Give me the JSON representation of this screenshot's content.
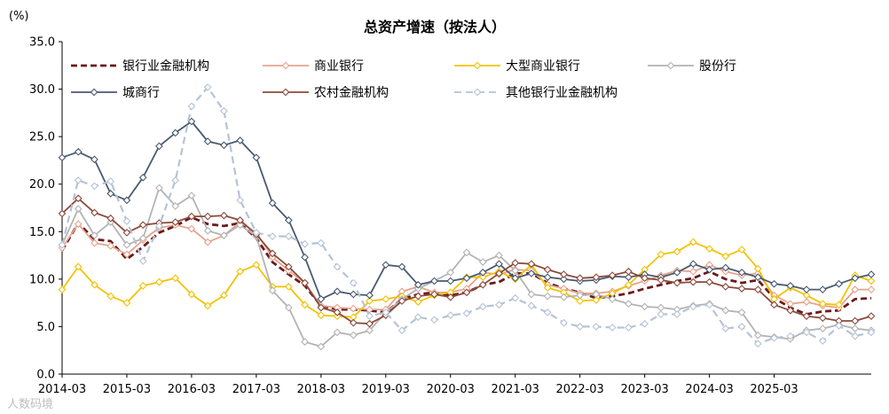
{
  "chart_data": {
    "type": "line",
    "title": "总资产增速（按法人）",
    "unit_label": "(%)",
    "ylim": [
      0,
      35
    ],
    "yticks": [
      "0.0",
      "5.0",
      "10.0",
      "15.0",
      "20.0",
      "25.0",
      "30.0",
      "35.0"
    ],
    "xticks": [
      "2014-03",
      "2015-03",
      "2016-03",
      "2017-03",
      "2018-03",
      "2019-03",
      "2020-03",
      "2021-03",
      "2022-03",
      "2023-03",
      "2024-03",
      "2025-03"
    ],
    "x_start": "2014-03",
    "x_step": "quarter",
    "watermark": "人数码境",
    "series": [
      {
        "name": "银行业金融机构",
        "color": "#6b1a1a",
        "style": "dashed",
        "marker": "none",
        "values": [
          13.0,
          15.9,
          14.2,
          14.0,
          12.1,
          13.4,
          14.9,
          15.6,
          16.5,
          15.8,
          15.6,
          15.9,
          14.3,
          11.8,
          10.5,
          9.3,
          7.2,
          6.8,
          6.8,
          6.7,
          6.5,
          7.9,
          8.4,
          8.6,
          8.3,
          8.6,
          9.4,
          9.7,
          10.6,
          10.6,
          9.6,
          9.0,
          8.6,
          8.0,
          8.2,
          8.5,
          9.0,
          9.4,
          9.8,
          10.1,
          10.8,
          10.0,
          9.6,
          9.9,
          8.0,
          7.0,
          6.3,
          6.6,
          6.7,
          7.9,
          8.0
        ]
      },
      {
        "name": "商业银行",
        "color": "#e6a38c",
        "style": "solid",
        "marker": "diamond",
        "values": [
          13.3,
          15.8,
          13.8,
          13.5,
          12.6,
          14.1,
          15.4,
          15.7,
          15.3,
          13.9,
          14.6,
          16.0,
          14.9,
          12.3,
          10.9,
          9.6,
          7.2,
          7.0,
          6.9,
          6.8,
          6.8,
          8.7,
          9.2,
          8.6,
          8.6,
          9.0,
          10.7,
          10.5,
          11.0,
          10.9,
          9.4,
          9.0,
          8.5,
          8.5,
          8.7,
          9.3,
          9.8,
          10.4,
          10.9,
          10.8,
          11.5,
          10.8,
          10.4,
          10.6,
          8.3,
          7.4,
          7.6,
          7.2,
          7.0,
          8.9,
          8.9
        ]
      },
      {
        "name": "大型商业银行",
        "color": "#f2c200",
        "style": "solid",
        "marker": "diamond",
        "values": [
          8.9,
          11.3,
          9.4,
          8.2,
          7.5,
          9.3,
          9.7,
          10.1,
          8.4,
          7.2,
          8.3,
          10.8,
          11.5,
          9.2,
          9.2,
          7.3,
          6.2,
          6.1,
          6.0,
          7.7,
          7.9,
          8.2,
          7.6,
          8.3,
          8.6,
          10.2,
          10.2,
          10.8,
          10.0,
          11.5,
          9.1,
          8.6,
          7.7,
          7.8,
          8.5,
          9.4,
          11.0,
          12.6,
          12.9,
          13.9,
          13.2,
          12.4,
          13.1,
          11.1,
          7.9,
          9.1,
          8.3,
          7.4,
          7.3,
          10.4,
          9.8
        ]
      },
      {
        "name": "股份行",
        "color": "#b3b3b3",
        "style": "solid",
        "marker": "diamond",
        "values": [
          13.6,
          17.4,
          14.6,
          16.0,
          13.6,
          14.3,
          19.6,
          17.7,
          18.8,
          15.1,
          14.6,
          15.7,
          14.5,
          8.8,
          7.0,
          3.4,
          2.9,
          4.4,
          4.1,
          4.6,
          6.5,
          7.9,
          9.0,
          9.8,
          10.7,
          12.8,
          11.8,
          12.5,
          10.9,
          8.4,
          8.2,
          8.1,
          8.3,
          8.4,
          7.9,
          7.4,
          7.1,
          7.0,
          6.8,
          7.2,
          7.4,
          6.7,
          6.5,
          4.1,
          3.9,
          3.7,
          4.6,
          4.8,
          5.2,
          4.8,
          4.6
        ]
      },
      {
        "name": "城商行",
        "color": "#4a5a70",
        "style": "solid",
        "marker": "diamond",
        "values": [
          22.8,
          23.4,
          22.6,
          19.0,
          18.3,
          20.7,
          24.0,
          25.4,
          26.6,
          24.5,
          24.1,
          24.6,
          22.8,
          18.0,
          16.2,
          12.3,
          7.9,
          8.7,
          8.4,
          8.3,
          11.5,
          11.3,
          9.4,
          9.8,
          9.8,
          10.1,
          10.7,
          11.6,
          10.1,
          10.6,
          10.2,
          10.0,
          9.8,
          9.9,
          10.3,
          10.2,
          10.5,
          10.2,
          10.7,
          11.6,
          11.0,
          11.2,
          10.7,
          10.2,
          9.5,
          9.3,
          8.9,
          8.9,
          9.5,
          10.1,
          10.5
        ]
      },
      {
        "name": "农村金融机构",
        "color": "#8b4a3c",
        "style": "solid",
        "marker": "diamond",
        "values": [
          16.9,
          18.5,
          17.0,
          16.4,
          14.9,
          15.7,
          15.9,
          16.0,
          16.6,
          16.6,
          16.7,
          16.2,
          14.7,
          12.7,
          11.3,
          9.6,
          7.0,
          6.5,
          5.4,
          5.3,
          6.2,
          7.7,
          8.2,
          8.4,
          8.1,
          8.6,
          9.4,
          10.6,
          11.7,
          11.6,
          11.0,
          10.5,
          10.1,
          10.2,
          10.4,
          10.8,
          10.1,
          9.9,
          9.6,
          9.7,
          9.7,
          9.2,
          9.0,
          8.9,
          7.3,
          6.7,
          6.1,
          5.9,
          5.6,
          5.6,
          6.1
        ]
      },
      {
        "name": "其他银行业金融机构",
        "color": "#b5c3d6",
        "style": "dashed",
        "marker": "diamond",
        "values": [
          13.6,
          20.4,
          19.8,
          20.3,
          16.1,
          11.9,
          15.6,
          20.4,
          28.2,
          30.2,
          27.7,
          18.3,
          14.9,
          14.5,
          14.5,
          13.7,
          13.8,
          11.3,
          9.6,
          6.1,
          6.5,
          4.6,
          6.0,
          5.7,
          6.2,
          6.4,
          7.1,
          7.3,
          8.0,
          7.2,
          6.5,
          5.4,
          5.0,
          5.0,
          4.9,
          4.9,
          5.3,
          6.3,
          6.3,
          7.1,
          7.3,
          4.8,
          5.0,
          3.2,
          3.8,
          4.0,
          4.4,
          3.5,
          5.1,
          4.0,
          4.4
        ]
      }
    ]
  }
}
